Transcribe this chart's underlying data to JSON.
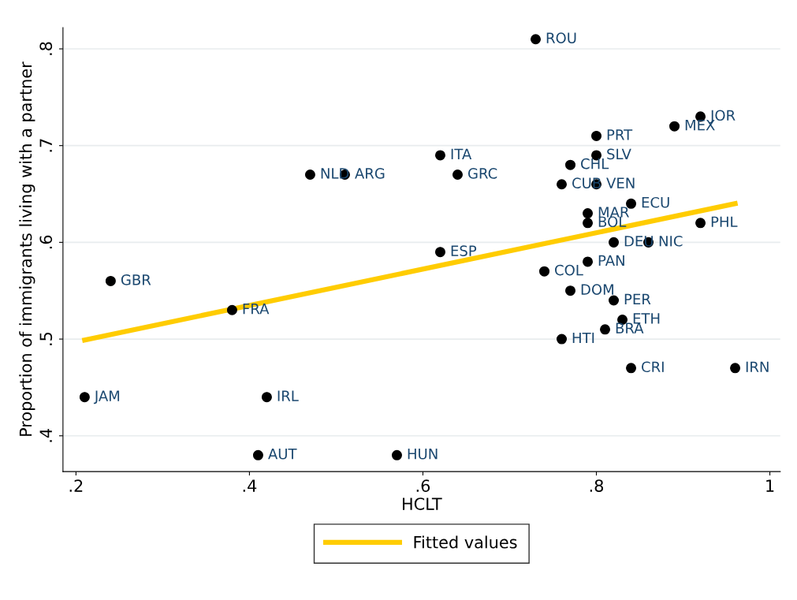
{
  "chart_data": {
    "type": "scatter",
    "xlabel": "HCLT",
    "ylabel": "Proportion of immigrants living with a partner",
    "x": [
      0.73,
      0.92,
      0.89,
      0.8,
      0.8,
      0.62,
      0.47,
      0.51,
      0.64,
      0.77,
      0.76,
      0.8,
      0.84,
      0.79,
      0.79,
      0.92,
      0.82,
      0.86,
      0.62,
      0.79,
      0.24,
      0.74,
      0.77,
      0.82,
      0.38,
      0.83,
      0.81,
      0.76,
      0.84,
      0.96,
      0.21,
      0.42,
      0.41,
      0.57
    ],
    "series": [
      {
        "color": "#000000",
        "marker": "circle",
        "values": [
          0.81,
          0.73,
          0.72,
          0.71,
          0.69,
          0.69,
          0.67,
          0.67,
          0.67,
          0.68,
          0.66,
          0.66,
          0.64,
          0.63,
          0.62,
          0.62,
          0.6,
          0.6,
          0.59,
          0.58,
          0.56,
          0.57,
          0.55,
          0.54,
          0.53,
          0.52,
          0.51,
          0.5,
          0.47,
          0.47,
          0.44,
          0.44,
          0.38,
          0.38
        ]
      },
      {
        "type": "line",
        "name": "Fitted values",
        "color": "#ffcc00",
        "marker": "none",
        "x": [
          0.21,
          0.96
        ],
        "values": [
          0.499,
          0.64
        ]
      }
    ],
    "annotations": [
      {
        "text": "ROU",
        "x": 0.73,
        "y": 0.81
      },
      {
        "text": "JOR",
        "x": 0.92,
        "y": 0.73
      },
      {
        "text": "MEX",
        "x": 0.89,
        "y": 0.72
      },
      {
        "text": "PRT",
        "x": 0.8,
        "y": 0.71
      },
      {
        "text": "SLV",
        "x": 0.8,
        "y": 0.69
      },
      {
        "text": "ITA",
        "x": 0.62,
        "y": 0.69
      },
      {
        "text": "NLD",
        "x": 0.47,
        "y": 0.67
      },
      {
        "text": "ARG",
        "x": 0.51,
        "y": 0.67
      },
      {
        "text": "GRC",
        "x": 0.64,
        "y": 0.67
      },
      {
        "text": "CHL",
        "x": 0.77,
        "y": 0.68
      },
      {
        "text": "CUB",
        "x": 0.76,
        "y": 0.66
      },
      {
        "text": "VEN",
        "x": 0.8,
        "y": 0.66
      },
      {
        "text": "ECU",
        "x": 0.84,
        "y": 0.64
      },
      {
        "text": "MAR",
        "x": 0.79,
        "y": 0.63
      },
      {
        "text": "BOL",
        "x": 0.79,
        "y": 0.62
      },
      {
        "text": "PHL",
        "x": 0.92,
        "y": 0.62
      },
      {
        "text": "DEU",
        "x": 0.82,
        "y": 0.6
      },
      {
        "text": "NIC",
        "x": 0.86,
        "y": 0.6
      },
      {
        "text": "ESP",
        "x": 0.62,
        "y": 0.59
      },
      {
        "text": "PAN",
        "x": 0.79,
        "y": 0.58
      },
      {
        "text": "GBR",
        "x": 0.24,
        "y": 0.56
      },
      {
        "text": "COL",
        "x": 0.74,
        "y": 0.57
      },
      {
        "text": "DOM",
        "x": 0.77,
        "y": 0.55
      },
      {
        "text": "PER",
        "x": 0.82,
        "y": 0.54
      },
      {
        "text": "FRA",
        "x": 0.38,
        "y": 0.53
      },
      {
        "text": "ETH",
        "x": 0.83,
        "y": 0.52
      },
      {
        "text": "BRA",
        "x": 0.81,
        "y": 0.51
      },
      {
        "text": "HTI",
        "x": 0.76,
        "y": 0.5
      },
      {
        "text": "CRI",
        "x": 0.84,
        "y": 0.47
      },
      {
        "text": "IRN",
        "x": 0.96,
        "y": 0.47
      },
      {
        "text": "JAM",
        "x": 0.21,
        "y": 0.44
      },
      {
        "text": "IRL",
        "x": 0.42,
        "y": 0.44
      },
      {
        "text": "AUT",
        "x": 0.41,
        "y": 0.38
      },
      {
        "text": "HUN",
        "x": 0.57,
        "y": 0.38
      }
    ],
    "xlim": [
      0.185,
      1.012
    ],
    "ylim": [
      0.363,
      0.822
    ],
    "xticks": [
      {
        "value": 0.2,
        "label": ".2"
      },
      {
        "value": 0.4,
        "label": ".4"
      },
      {
        "value": 0.6,
        "label": ".6"
      },
      {
        "value": 0.8,
        "label": ".8"
      },
      1
    ],
    "yticks": [
      {
        "value": 0.4,
        "label": ".4"
      },
      {
        "value": 0.5,
        "label": ".5"
      },
      {
        "value": 0.6,
        "label": ".6"
      },
      {
        "value": 0.7,
        "label": ".7"
      },
      {
        "value": 0.8,
        "label": ".8"
      }
    ],
    "grid": "y",
    "legend": "bottom"
  }
}
